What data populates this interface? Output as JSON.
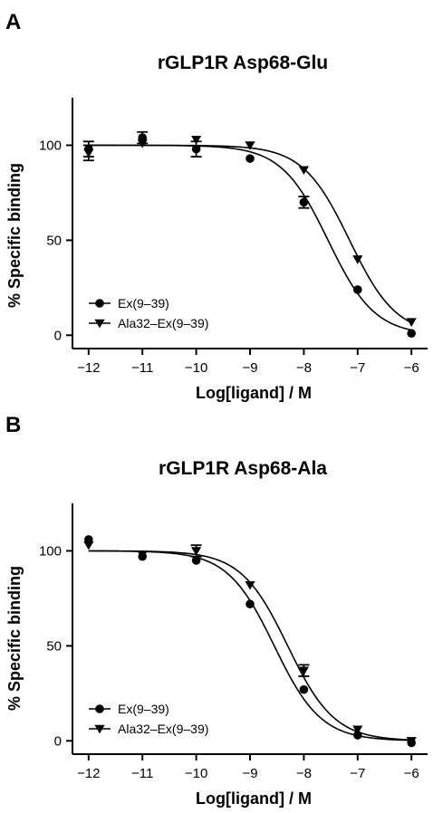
{
  "chart_data": [
    {
      "type": "scatter",
      "panel_label": "A",
      "title": "rGLP1R Asp68-Glu",
      "xlabel": "Log[ligand] / M",
      "ylabel": "% Specific binding",
      "xlim": [
        -12.3,
        -5.7
      ],
      "ylim": [
        -7,
        125
      ],
      "x_ticks": [
        -12,
        -11,
        -10,
        -9,
        -8,
        -7,
        -6
      ],
      "x_tick_labels": [
        "−12",
        "−11",
        "−10",
        "−9",
        "−8",
        "−7",
        "−6"
      ],
      "y_ticks": [
        0,
        50,
        100
      ],
      "y_tick_labels": [
        "0",
        "50",
        "100"
      ],
      "legend_position": "bottom-left",
      "series": [
        {
          "name": "Ex(9–39)",
          "marker": "circle",
          "x": [
            -12,
            -11,
            -10,
            -9,
            -8,
            -7,
            -6
          ],
          "y": [
            98,
            104,
            98,
            93,
            70,
            24,
            1
          ],
          "err": [
            4,
            3,
            4,
            0,
            3,
            0,
            0
          ],
          "fit": {
            "top": 100,
            "bottom": 0,
            "logIC50": -7.55,
            "hill": 1
          }
        },
        {
          "name": "Ala32–Ex(9–39)",
          "marker": "triangle-down",
          "x": [
            -12,
            -11,
            -10,
            -9,
            -8,
            -7,
            -6
          ],
          "y": [
            96,
            101,
            103,
            100,
            87,
            40,
            7
          ],
          "err": [
            4,
            0,
            0,
            0,
            0,
            0,
            0
          ],
          "fit": {
            "top": 100,
            "bottom": 0,
            "logIC50": -7.15,
            "hill": 1
          }
        }
      ]
    },
    {
      "type": "scatter",
      "panel_label": "B",
      "title": "rGLP1R Asp68-Ala",
      "xlabel": "Log[ligand] / M",
      "ylabel": "% Specific binding",
      "xlim": [
        -12.3,
        -5.7
      ],
      "ylim": [
        -7,
        125
      ],
      "x_ticks": [
        -12,
        -11,
        -10,
        -9,
        -8,
        -7,
        -6
      ],
      "x_tick_labels": [
        "−12",
        "−11",
        "−10",
        "−9",
        "−8",
        "−7",
        "−6"
      ],
      "y_ticks": [
        0,
        50,
        100
      ],
      "y_tick_labels": [
        "0",
        "50",
        "100"
      ],
      "legend_position": "bottom-left",
      "series": [
        {
          "name": "Ex(9–39)",
          "marker": "circle",
          "x": [
            -12,
            -11,
            -10,
            -9,
            -8,
            -7,
            -6
          ],
          "y": [
            106,
            97,
            95,
            72,
            27,
            3,
            -1
          ],
          "err": [
            0,
            0,
            0,
            0,
            0,
            0,
            0
          ],
          "fit": {
            "top": 100,
            "bottom": 0,
            "logIC50": -8.55,
            "hill": 1
          }
        },
        {
          "name": "Ala32–Ex(9–39)",
          "marker": "triangle-down",
          "x": [
            -12,
            -11,
            -10,
            -9,
            -8,
            -7,
            -6
          ],
          "y": [
            103,
            98,
            100,
            82,
            37,
            6,
            0
          ],
          "err": [
            0,
            0,
            3,
            0,
            3,
            0,
            0
          ],
          "fit": {
            "top": 100,
            "bottom": 0,
            "logIC50": -8.3,
            "hill": 1
          }
        }
      ]
    }
  ]
}
